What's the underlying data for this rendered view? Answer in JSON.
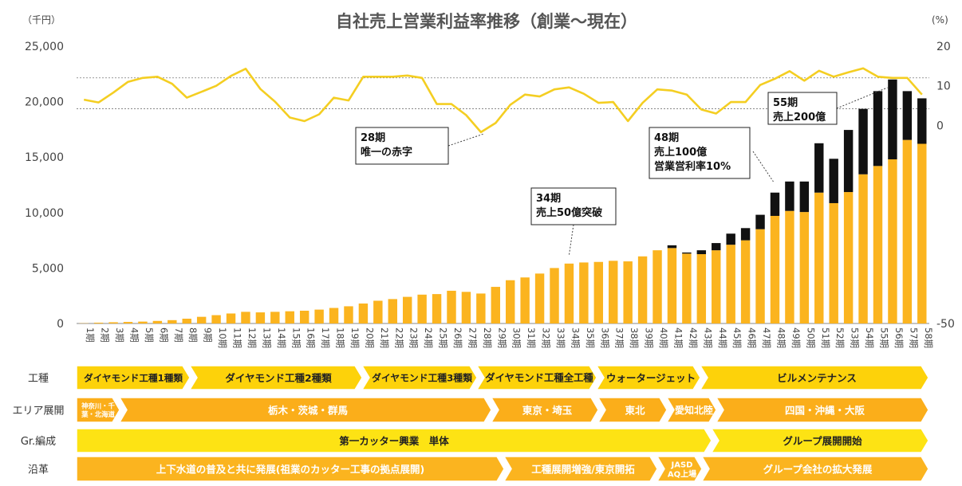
{
  "chart_data": {
    "type": "bar",
    "title": "自社売上営業利益率推移（創業〜現在）",
    "left_unit": "（千円）",
    "right_unit": "(%)",
    "ylim": [
      0,
      25000
    ],
    "y_ticks": [
      "0",
      "5,000",
      "10,000",
      "15,000",
      "20,000",
      "25,000"
    ],
    "y2lim": [
      -50,
      20
    ],
    "y2_ticks": [
      "-50",
      "0",
      "10",
      "20"
    ],
    "categories": [
      "1期",
      "2期",
      "3期",
      "4期",
      "5期",
      "6期",
      "7期",
      "8期",
      "9期",
      "10期",
      "11期",
      "12期",
      "13期",
      "14期",
      "15期",
      "16期",
      "17期",
      "18期",
      "19期",
      "20期",
      "21期",
      "22期",
      "23期",
      "24期",
      "25期",
      "26期",
      "27期",
      "28期",
      "29期",
      "30期",
      "31期",
      "32期",
      "33期",
      "34期",
      "35期",
      "36期",
      "37期",
      "38期",
      "39期",
      "40期",
      "41期",
      "42期",
      "43期",
      "44期",
      "45期",
      "46期",
      "47期",
      "48期",
      "49期",
      "50期",
      "51期",
      "52期",
      "53期",
      "54期",
      "55期",
      "56期",
      "57期",
      "58期"
    ],
    "series": [
      {
        "color": "#FBB41F",
        "values": [
          20,
          70,
          110,
          140,
          170,
          230,
          300,
          430,
          600,
          750,
          900,
          1050,
          1000,
          1050,
          1100,
          1150,
          1250,
          1400,
          1550,
          1800,
          2050,
          2200,
          2400,
          2600,
          2650,
          2950,
          2850,
          2700,
          3300,
          3900,
          4150,
          4500,
          5000,
          5400,
          5500,
          5550,
          5650,
          5600,
          6050,
          6600,
          6800,
          6300,
          6250,
          6600,
          7100,
          7500,
          8500,
          9700,
          10150,
          10050,
          11800,
          10850,
          11850,
          13450,
          14200,
          14800,
          16550,
          16200
        ]
      },
      {
        "color": "#111111",
        "values": [
          0,
          0,
          0,
          0,
          0,
          0,
          0,
          0,
          0,
          0,
          0,
          0,
          0,
          0,
          0,
          0,
          0,
          0,
          0,
          0,
          0,
          0,
          0,
          0,
          0,
          0,
          0,
          0,
          0,
          0,
          0,
          0,
          0,
          0,
          0,
          0,
          0,
          0,
          0,
          0,
          250,
          100,
          350,
          650,
          1000,
          1100,
          1300,
          2100,
          2650,
          2750,
          4450,
          4000,
          5600,
          5900,
          6750,
          7200,
          4400,
          4100
        ]
      },
      {
        "color": "#F4CE22",
        "axis": "right",
        "values": [
          6.5,
          5.8,
          8.3,
          11,
          12,
          12.3,
          10.5,
          7,
          8.5,
          10,
          12.5,
          14.3,
          9.2,
          6,
          2,
          1.1,
          2.8,
          7,
          6.3,
          12.3,
          12.3,
          12.3,
          12.6,
          12,
          5.4,
          5.4,
          2.6,
          -1.7,
          0.6,
          5.2,
          7.8,
          7.3,
          9.1,
          9.6,
          8,
          5.7,
          5.9,
          1.1,
          5.7,
          9.1,
          8.8,
          7.8,
          4,
          3,
          5.9,
          5.9,
          10.2,
          11.8,
          13.7,
          11.3,
          13.8,
          12.3,
          13.4,
          14.4,
          12.3,
          12,
          12,
          7.8
        ]
      }
    ],
    "reference_lines_right": [
      12,
      4.2
    ],
    "annotations": [
      {
        "lines": [
          "28期",
          "唯一の赤字"
        ]
      },
      {
        "lines": [
          "34期",
          "売上50億突破"
        ]
      },
      {
        "lines": [
          "48期",
          "売上100億",
          "営業営利率10%"
        ]
      },
      {
        "lines": [
          "55期",
          "売上200億"
        ]
      }
    ],
    "timeline": {
      "rows": [
        {
          "label": "工種",
          "segments": [
            "ダイヤモンド工種1種類",
            "ダイヤモンド工種2種類",
            "ダイヤモンド工種3種類",
            "ダイヤモンド工種全工種",
            "ウォータージェット",
            "ビルメンテナンス"
          ]
        },
        {
          "label": "エリア展開",
          "segments": [
            "神奈川・千葉・北海道",
            "栃木・茨城・群馬",
            "東京・埼玉",
            "東北",
            "愛知北陸",
            "四国・沖縄・大阪"
          ]
        },
        {
          "label": "Gr.編成",
          "segments": [
            "第一カッター興業　単体",
            "グループ展開開始"
          ]
        },
        {
          "label": "沿革",
          "segments": [
            "上下水道の普及と共に発展(祖業のカッター工事の拠点展開)",
            "工種展開増強/東京開拓",
            "JASDAQ上場",
            "グループ会社の拡大発展"
          ]
        }
      ]
    }
  }
}
